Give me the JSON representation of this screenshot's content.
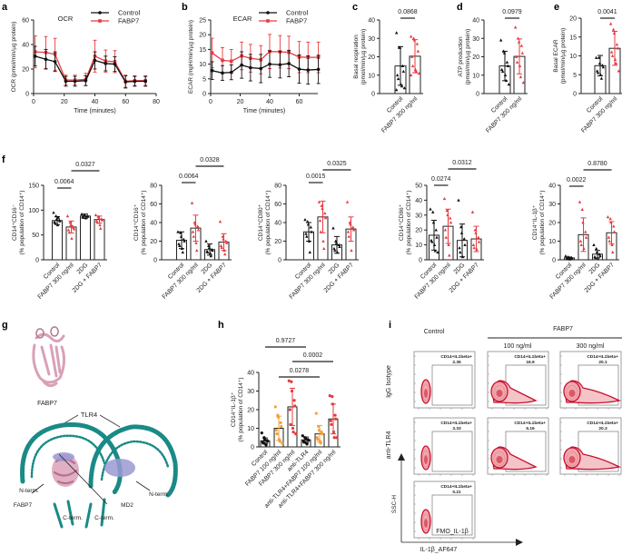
{
  "panel_labels": {
    "a": "a",
    "b": "b",
    "c": "c",
    "d": "d",
    "e": "e",
    "f": "f",
    "g": "g",
    "h": "h",
    "i": "i"
  },
  "colors": {
    "control": "#111111",
    "fabp7": "#e8393f",
    "fabp7_100": "#f5a03a",
    "teal": "#1a8a86",
    "pink": "#d9a1b8",
    "lavender": "#9a99d2",
    "flow_red": "#c8102e"
  },
  "chart_data": [
    {
      "id": "a",
      "type": "line",
      "title": "OCR",
      "xlabel": "Time (minutes)",
      "ylabel": "OCR (pmol/min/µg protein)",
      "xlim": [
        0,
        80
      ],
      "ylim": [
        0,
        60
      ],
      "xticks": [
        0,
        20,
        40,
        60,
        80
      ],
      "yticks": [
        0,
        20,
        40,
        60
      ],
      "legend": "top-right",
      "grid": false,
      "x": [
        1,
        8,
        14,
        21,
        27,
        34,
        40,
        47,
        53,
        60,
        66,
        73
      ],
      "series": [
        {
          "name": "Control",
          "color": "#111111",
          "marker": "circle",
          "values": [
            30.5,
            28,
            26,
            10,
            10,
            10.5,
            27,
            24.5,
            24,
            9.5,
            10,
            10
          ],
          "sd": [
            8,
            8,
            8,
            4,
            4,
            4,
            7,
            6,
            6,
            5,
            4,
            4
          ]
        },
        {
          "name": "FABP7",
          "color": "#e8393f",
          "marker": "square",
          "values": [
            34,
            33.5,
            32,
            11,
            11,
            11.5,
            30.5,
            26.5,
            26,
            10,
            10.5,
            10.5
          ],
          "sd": [
            13,
            13,
            13,
            4,
            4,
            5,
            13,
            9,
            9,
            5,
            4,
            4
          ]
        }
      ]
    },
    {
      "id": "b",
      "type": "line",
      "title": "ECAR",
      "xlabel": "Time (minutes)",
      "ylabel": "ECAR (mpH/min/µg protein)",
      "xlim": [
        0,
        80
      ],
      "ylim": [
        0,
        25
      ],
      "xticks": [
        0,
        20,
        40,
        60
      ],
      "yticks": [
        0,
        5,
        10,
        15,
        20,
        25
      ],
      "legend": "top-right",
      "grid": false,
      "x": [
        1,
        8,
        14,
        21,
        27,
        34,
        40,
        47,
        53,
        60,
        66,
        73
      ],
      "series": [
        {
          "name": "Control",
          "color": "#111111",
          "marker": "circle",
          "values": [
            7.8,
            7,
            7.2,
            9.7,
            8.8,
            8.5,
            10,
            9.8,
            10.2,
            8.3,
            8,
            8.2
          ],
          "sd": [
            3,
            2.5,
            2.5,
            4.5,
            4.5,
            4.8,
            4.5,
            4.5,
            4.5,
            4.8,
            4.8,
            4.8
          ]
        },
        {
          "name": "FABP7",
          "color": "#e8393f",
          "marker": "square",
          "values": [
            13.8,
            11.3,
            11,
            12.8,
            12,
            11.5,
            14.3,
            14.2,
            14,
            12.4,
            12.3,
            12.3
          ],
          "sd": [
            5,
            4.3,
            4,
            4.7,
            4.7,
            4.8,
            5.8,
            5.5,
            5.5,
            5.3,
            5.2,
            5.2
          ]
        }
      ]
    },
    {
      "id": "c",
      "type": "bar",
      "ylabel": [
        "Basal respiration",
        "(pmol/min/µg protein)"
      ],
      "ylim": [
        0,
        40
      ],
      "yticks": [
        0,
        10,
        20,
        30,
        40
      ],
      "categories": [
        "Control",
        "FABP7 300 ng/ml"
      ],
      "colors": [
        "#111111",
        "#e8393f"
      ],
      "marker": "triangle",
      "means": [
        15,
        20.3
      ],
      "sd": [
        10.5,
        9
      ],
      "points": [
        [
          33,
          25,
          25,
          15,
          12,
          10,
          8,
          5,
          4,
          3,
          2
        ],
        [
          31,
          30,
          29,
          27,
          23,
          20,
          15,
          13,
          12,
          11,
          10
        ]
      ],
      "comparisons": [
        {
          "groups": [
            0,
            1
          ],
          "p": "0.0868"
        }
      ]
    },
    {
      "id": "d",
      "type": "bar",
      "ylabel": [
        "ATP production",
        "(pmol/min/µg protein)"
      ],
      "ylim": [
        0,
        40
      ],
      "yticks": [
        0,
        10,
        20,
        30,
        40
      ],
      "categories": [
        "Control",
        "FABP7 300 ng/ml"
      ],
      "colors": [
        "#111111",
        "#e8393f"
      ],
      "marker": "triangle",
      "means": [
        15,
        20.2
      ],
      "sd": [
        8,
        9.5
      ],
      "points": [
        [
          29,
          23,
          22,
          17,
          15,
          13,
          12,
          10,
          7,
          5
        ],
        [
          36,
          30,
          28,
          26,
          22,
          20,
          17,
          15,
          9,
          6
        ]
      ],
      "comparisons": [
        {
          "groups": [
            0,
            1
          ],
          "p": "0.0979"
        }
      ]
    },
    {
      "id": "e",
      "type": "bar",
      "ylabel": [
        "Basal ECAR",
        "(pmol/min/µg protein)"
      ],
      "ylim": [
        0,
        20
      ],
      "yticks": [
        0,
        5,
        10,
        15,
        20
      ],
      "categories": [
        "Control",
        "FABP7 300 ng/ml"
      ],
      "colors": [
        "#111111",
        "#e8393f"
      ],
      "marker": "triangle",
      "means": [
        7.4,
        12
      ],
      "sd": [
        2.7,
        4.5
      ],
      "points": [
        [
          9.5,
          9.5,
          8,
          7.5,
          7,
          6,
          5.5,
          5,
          4
        ],
        [
          18.5,
          17,
          16,
          13,
          12,
          11,
          10,
          9,
          8,
          6
        ]
      ],
      "comparisons": [
        {
          "groups": [
            0,
            1
          ],
          "p": "0.0041"
        }
      ]
    },
    {
      "id": "f1",
      "type": "bar",
      "ylabel": [
        "CD14⁺CD16⁻",
        "(% population of CD14⁺)"
      ],
      "ylim": [
        0,
        150
      ],
      "yticks": [
        0,
        50,
        100,
        150
      ],
      "categories": [
        "Control",
        "FABP7 300 ng/ml",
        "2DG",
        "2DG + FABP7"
      ],
      "colors": [
        "#111111",
        "#e8393f",
        "#111111",
        "#e8393f"
      ],
      "marker": "triangle",
      "means": [
        79,
        66,
        88,
        81
      ],
      "sd": [
        8,
        12,
        4,
        7
      ],
      "points": [
        [
          95,
          88,
          82,
          80,
          78,
          76,
          74,
          70,
          85
        ],
        [
          88,
          75,
          70,
          65,
          62,
          60,
          55,
          43,
          68
        ],
        [
          92,
          90,
          89,
          88,
          87,
          86,
          85,
          84
        ],
        [
          90,
          87,
          84,
          82,
          80,
          78,
          75,
          70,
          63
        ]
      ],
      "comparisons": [
        {
          "groups": [
            0,
            1
          ],
          "p": "0.0064"
        },
        {
          "groups": [
            1,
            3
          ],
          "p": "0.0327"
        }
      ]
    },
    {
      "id": "f2",
      "type": "bar",
      "ylabel": [
        "CD14⁺CD16⁺",
        "(% population of CD14⁺)"
      ],
      "ylim": [
        0,
        80
      ],
      "yticks": [
        0,
        20,
        40,
        60,
        80
      ],
      "categories": [
        "Control",
        "FABP7 300 ng/ml",
        "2DG",
        "2DG + FABP7"
      ],
      "colors": [
        "#111111",
        "#e8393f",
        "#111111",
        "#e8393f"
      ],
      "marker": "triangle",
      "means": [
        21,
        34,
        11,
        19
      ],
      "sd": [
        9,
        14,
        6,
        9
      ],
      "points": [
        [
          30,
          29,
          25,
          22,
          20,
          17,
          15,
          12,
          8
        ],
        [
          61,
          40,
          38,
          36,
          32,
          30,
          25,
          18,
          10
        ],
        [
          20,
          15,
          13,
          11,
          10,
          9,
          8,
          7,
          4
        ],
        [
          41,
          25,
          22,
          20,
          18,
          15,
          13,
          10,
          6
        ]
      ],
      "comparisons": [
        {
          "groups": [
            0,
            1
          ],
          "p": "0.0064"
        },
        {
          "groups": [
            1,
            3
          ],
          "p": "0.0328"
        }
      ]
    },
    {
      "id": "f3",
      "type": "bar",
      "ylabel": [
        "CD14⁺CD80⁺",
        "(% population of CD14⁺)"
      ],
      "ylim": [
        0,
        80
      ],
      "yticks": [
        0,
        20,
        40,
        60,
        80
      ],
      "categories": [
        "Control",
        "FABP7 300 ng/ml",
        "2DG",
        "2DG + FABP7"
      ],
      "colors": [
        "#111111",
        "#e8393f",
        "#111111",
        "#e8393f"
      ],
      "marker": "triangle",
      "means": [
        30,
        46,
        16,
        33
      ],
      "sd": [
        10,
        17,
        9,
        13
      ],
      "points": [
        [
          43,
          41,
          38,
          35,
          30,
          28,
          25,
          20,
          8
        ],
        [
          62,
          58,
          55,
          50,
          45,
          42,
          30,
          20,
          12
        ],
        [
          34,
          20,
          18,
          16,
          14,
          12,
          10,
          8
        ],
        [
          62,
          40,
          38,
          35,
          32,
          30,
          25,
          10
        ]
      ],
      "comparisons": [
        {
          "groups": [
            0,
            1
          ],
          "p": "0.0015"
        },
        {
          "groups": [
            1,
            3
          ],
          "p": "0.0325"
        }
      ]
    },
    {
      "id": "f4",
      "type": "bar",
      "ylabel": [
        "CD14⁺CD86⁺",
        "(% population of CD14⁺)"
      ],
      "ylim": [
        0,
        50
      ],
      "yticks": [
        0,
        10,
        20,
        30,
        40,
        50
      ],
      "categories": [
        "Control",
        "FABP7 300 ng/ml",
        "2DG",
        "2DG + FABP7"
      ],
      "colors": [
        "#111111",
        "#e8393f",
        "#111111",
        "#e8393f"
      ],
      "marker": "triangle",
      "means": [
        16.5,
        22.5,
        13,
        14
      ],
      "sd": [
        10,
        11.5,
        11,
        8.5
      ],
      "points": [
        [
          34,
          32,
          25,
          20,
          15,
          13,
          12,
          10,
          6,
          5
        ],
        [
          41,
          33,
          30,
          28,
          25,
          20,
          15,
          10,
          3
        ],
        [
          40,
          22,
          18,
          14,
          10,
          8,
          5,
          2
        ],
        [
          32,
          20,
          18,
          15,
          12,
          10,
          8,
          7
        ]
      ],
      "comparisons": [
        {
          "groups": [
            0,
            1
          ],
          "p": "0.0274"
        },
        {
          "groups": [
            1,
            3
          ],
          "p": "0.0312"
        }
      ]
    },
    {
      "id": "f5",
      "type": "bar",
      "ylabel": [
        "CD14⁺IL-1β⁺",
        "(% population of CD14⁺)"
      ],
      "ylim": [
        0,
        40
      ],
      "yticks": [
        0,
        10,
        20,
        30,
        40
      ],
      "categories": [
        "Control",
        "FABP7 300 ng/ml",
        "2DG",
        "2DG + FABP7"
      ],
      "colors": [
        "#111111",
        "#e8393f",
        "#111111",
        "#e8393f"
      ],
      "marker": "triangle",
      "means": [
        1,
        13.5,
        3,
        14.5
      ],
      "sd": [
        0.5,
        9,
        2,
        6
      ],
      "points": [
        [
          2,
          1.5,
          1,
          1,
          0.8,
          0.5,
          0.5,
          0.3
        ],
        [
          31,
          27,
          20,
          15,
          12,
          10,
          8,
          6
        ],
        [
          8,
          6,
          4,
          3,
          2,
          1.5,
          1,
          0.5
        ],
        [
          23,
          22,
          20,
          18,
          15,
          12,
          10,
          8,
          4
        ]
      ],
      "comparisons": [
        {
          "groups": [
            0,
            1
          ],
          "p": "0.0022"
        },
        {
          "groups": [
            1,
            3
          ],
          "p": "0.8780"
        }
      ]
    },
    {
      "id": "h",
      "type": "bar",
      "ylabel": [
        "CD14⁺IL-1β⁺",
        "(% population of CD14⁺)"
      ],
      "ylim": [
        0,
        40
      ],
      "yticks": [
        0,
        10,
        20,
        30,
        40
      ],
      "categories": [
        "Control",
        "FABP7 100 ng/ml",
        "FABP7 300 ng/ml",
        "anti-TLR4",
        "anti-TLR4+FABP7 100 ng/ml",
        "anti-TLR4+FABP7 300 ng/ml"
      ],
      "colors": [
        "#111111",
        "#f5a03a",
        "#e8393f",
        "#111111",
        "#f5a03a",
        "#e8393f"
      ],
      "marker": "circle",
      "means": [
        3.3,
        10,
        21.5,
        3.8,
        7,
        15
      ],
      "sd": [
        1.5,
        6.5,
        10,
        1.5,
        4.5,
        8
      ],
      "points": [
        [
          7.5,
          5,
          4,
          3.5,
          3,
          2.5,
          2,
          1.5,
          1
        ],
        [
          21.5,
          17,
          16,
          13,
          11,
          9,
          7,
          4,
          3,
          2
        ],
        [
          35.5,
          35,
          30,
          25,
          22,
          20,
          12,
          10,
          8,
          7
        ],
        [
          6,
          5,
          4.5,
          4,
          3.5,
          3,
          2.5,
          2,
          1.5
        ],
        [
          18,
          11,
          9,
          8,
          7,
          5,
          4,
          3,
          2
        ],
        [
          27.5,
          27,
          23,
          17,
          15,
          14,
          12,
          8,
          5,
          5
        ]
      ],
      "comparisons": [
        {
          "groups": [
            1,
            4
          ],
          "p": "0.0278"
        },
        {
          "groups": [
            2,
            5
          ],
          "p": "0.0002"
        },
        {
          "groups": [
            0,
            3
          ],
          "p": "0.9727"
        }
      ]
    }
  ],
  "structure": {
    "fabp7_top": "FABP7",
    "tlr4": "TLR4",
    "nterm_left": "N-term.",
    "fabp7_bottom": "FABP7",
    "cterm_1": "C-term.",
    "cterm_2": "C-term.",
    "md2": "MD2",
    "nterm_right": "N-term."
  },
  "flow": {
    "col_control": "Control",
    "col_fabp7": "FABP7",
    "col_100": "100 ng/ml",
    "col_300": "300 ng/ml",
    "row_igg": "IgG Isotype",
    "row_tlr4": "anti-TLR4",
    "y_axis": "SSC-H",
    "x_axis": "IL-1β_AF647",
    "gate_label": "CD14+IL1beta+",
    "fmo_label": "FMO_IL-1β",
    "gates": [
      "2.35",
      "16.9",
      "20.1",
      "3.33",
      "5.16",
      "20.3",
      "0.21"
    ]
  }
}
